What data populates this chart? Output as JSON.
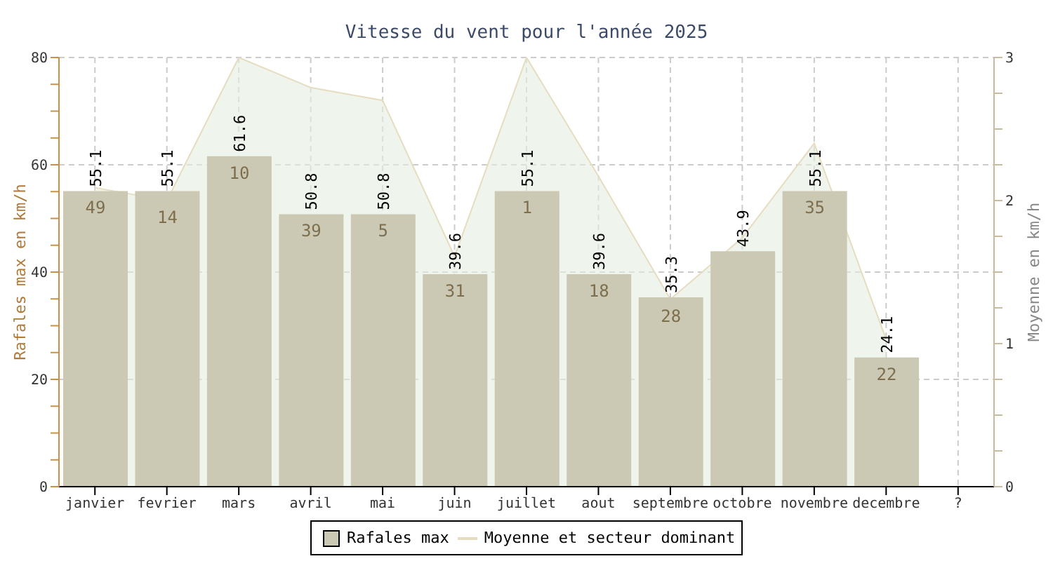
{
  "chart_data": {
    "type": "bar",
    "title": "Vitesse du vent pour l'année 2025",
    "ylabel": "Rafales max en km/h",
    "y2label": "Moyenne en km/h",
    "categories": [
      "janvier",
      "fevrier",
      "mars",
      "avril",
      "mai",
      "juin",
      "juillet",
      "aout",
      "septembre",
      "octobre",
      "novembre",
      "decembre",
      "?"
    ],
    "series": [
      {
        "name": "Rafales max",
        "color": "#cbc9b3",
        "values": [
          55.1,
          55.1,
          61.6,
          50.8,
          50.8,
          39.6,
          55.1,
          39.6,
          35.3,
          43.9,
          55.1,
          24.1,
          null
        ],
        "value_labels": [
          "55.1",
          "55.1",
          "61.6",
          "50.8",
          "50.8",
          "39.6",
          "55.1",
          "39.6",
          "35.3",
          "43.9",
          "55.1",
          "24.1",
          null
        ]
      },
      {
        "name": "Moyenne et secteur dominant",
        "type": "area",
        "axis": "y2",
        "color": "#e6dcc0",
        "values": [
          2.09,
          2.0,
          3.0,
          2.79,
          2.7,
          1.61,
          3.0,
          2.17,
          1.31,
          1.74,
          2.4,
          1.03,
          null
        ]
      }
    ],
    "annotations": [
      "49",
      "14",
      "10",
      "39",
      "5",
      "31",
      "1",
      "18",
      "28",
      "35",
      "22"
    ],
    "ylim": [
      0,
      80
    ],
    "yticks": [
      0,
      {
        "value": 5,
        "label": null
      },
      {
        "value": 10,
        "label": null
      },
      {
        "value": 15,
        "label": null
      },
      20,
      {
        "value": 25,
        "label": null
      },
      {
        "value": 30,
        "label": null
      },
      {
        "value": 35,
        "label": null
      },
      40,
      {
        "value": 45,
        "label": null
      },
      {
        "value": 50,
        "label": null
      },
      {
        "value": 55,
        "label": null
      },
      60,
      {
        "value": 65,
        "label": null
      },
      {
        "value": 70,
        "label": null
      },
      {
        "value": 75,
        "label": null
      },
      80
    ],
    "y2lim": [
      0,
      3
    ],
    "y2ticks": [
      0,
      {
        "value": 0.25,
        "label": null
      },
      {
        "value": 0.5,
        "label": null
      },
      {
        "value": 0.75,
        "label": null
      },
      1,
      {
        "value": 1.25,
        "label": null
      },
      {
        "value": 1.5,
        "label": null
      },
      {
        "value": 1.75,
        "label": null
      },
      2,
      {
        "value": 2.25,
        "label": null
      },
      {
        "value": 2.5,
        "label": null
      },
      {
        "value": 2.75,
        "label": null
      },
      3
    ],
    "grid": true,
    "legend": "bottom"
  }
}
